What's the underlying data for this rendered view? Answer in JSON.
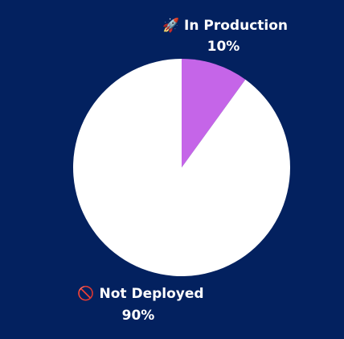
{
  "chart_data": {
    "type": "pie",
    "categories": [
      "🚀 In Production",
      "🚫 Not Deployed"
    ],
    "values": [
      10,
      90
    ],
    "value_labels": [
      "10%",
      "90%"
    ],
    "colors": [
      "#c565e8",
      "#ffffff"
    ]
  }
}
